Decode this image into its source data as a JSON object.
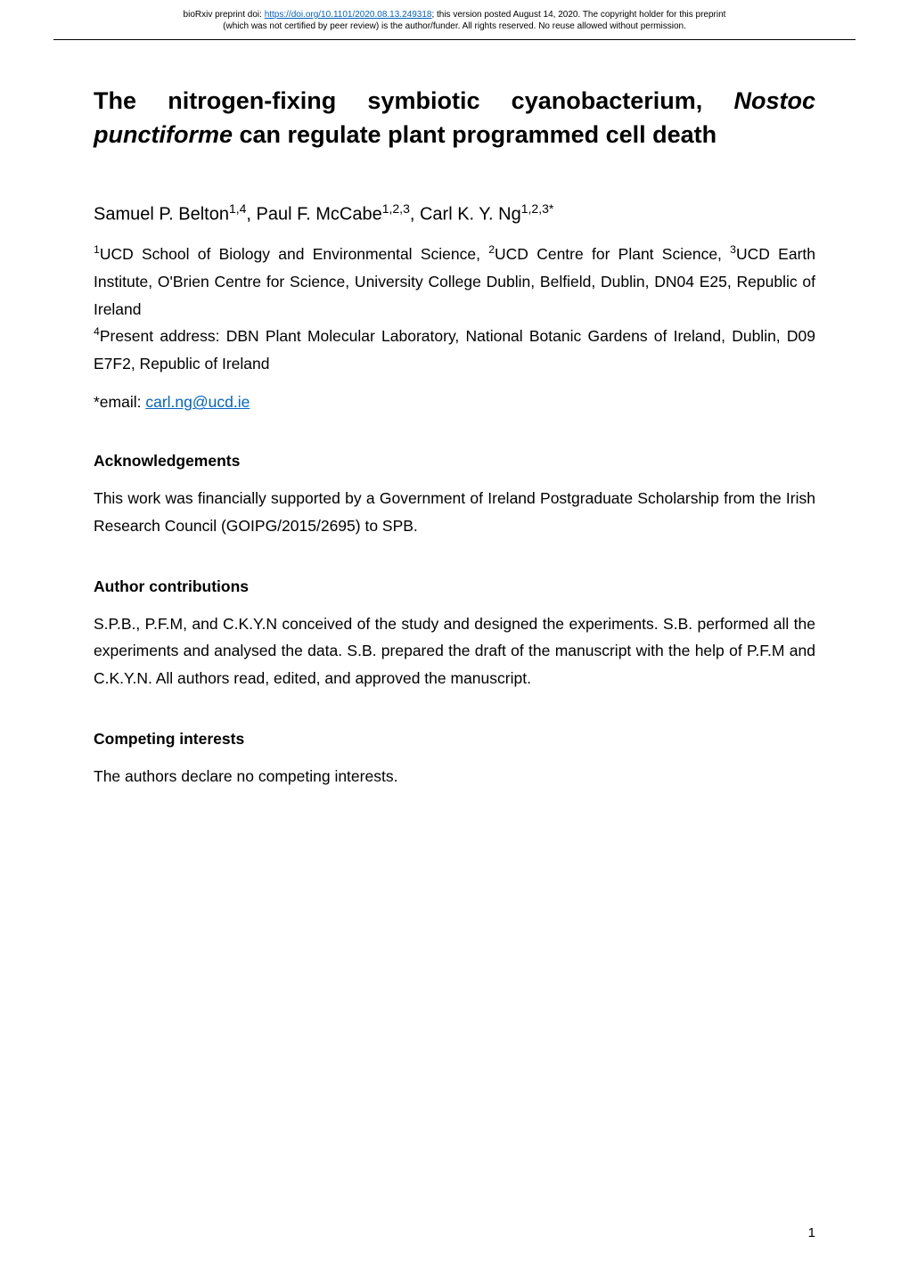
{
  "preprint_header": {
    "line1_prefix": "bioRxiv preprint doi: ",
    "doi_url": "https://doi.org/10.1101/2020.08.13.249318",
    "line1_suffix": "; this version posted August 14, 2020. The copyright holder for this preprint",
    "line2": "(which was not certified by peer review) is the author/funder. All rights reserved. No reuse allowed without permission.",
    "doi_color": "#0563c1"
  },
  "title": {
    "part1": "The nitrogen-fixing symbiotic cyanobacterium, ",
    "italic": "Nostoc punctiforme",
    "part2": " can regulate plant programmed cell death"
  },
  "authors": {
    "a1_name": "Samuel P. Belton",
    "a1_sup": "1,4",
    "a2_name": ", Paul F. McCabe",
    "a2_sup": "1,2,3",
    "a3_name": ", Carl K. Y. Ng",
    "a3_sup": "1,2,3*"
  },
  "affiliations": {
    "aff1_sup": "1",
    "aff1_text": "UCD School of Biology and Environmental Science, ",
    "aff2_sup": "2",
    "aff2_text": "UCD Centre for Plant Science, ",
    "aff3_sup": "3",
    "aff3_text": "UCD Earth Institute, O'Brien Centre for Science, University College Dublin, Belfield, Dublin, DN04 E25, Republic of Ireland",
    "aff4_sup": "4",
    "aff4_label": "Present address: ",
    "aff4_text": "DBN Plant Molecular Laboratory, National Botanic Gardens of Ireland, Dublin, D09 E7F2, Republic of Ireland"
  },
  "email": {
    "prefix": "*email: ",
    "address": "carl.ng@ucd.ie",
    "link_color": "#0563c1"
  },
  "sections": {
    "acknowledgements": {
      "heading": "Acknowledgements",
      "body": "This work was financially supported by a Government of Ireland Postgraduate Scholarship from the Irish Research Council (GOIPG/2015/2695) to SPB."
    },
    "author_contributions": {
      "heading": "Author contributions",
      "body": "S.P.B., P.F.M, and C.K.Y.N conceived of the study and designed the experiments. S.B. performed all the experiments and analysed the data. S.B. prepared the draft of the manuscript with the help of P.F.M and C.K.Y.N. All authors read, edited, and approved the manuscript."
    },
    "competing_interests": {
      "heading": "Competing interests",
      "body": "The authors declare no competing interests."
    }
  },
  "page_number": "1",
  "colors": {
    "text": "#000000",
    "link": "#0563c1",
    "background": "#ffffff"
  }
}
